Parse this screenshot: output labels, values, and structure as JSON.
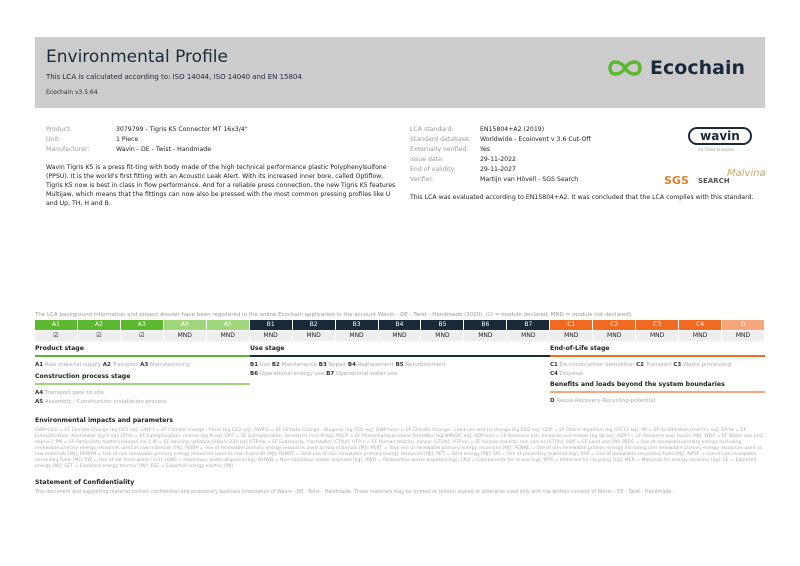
{
  "header": {
    "title": "Environmental Profile",
    "subtitle": "This LCA is calculated according to: ISO 14044, ISO 14040 and EN 15804",
    "version": "Ecochain v3.5.64",
    "logo_text": "Ecochain",
    "logo_color": "#5cb82e"
  },
  "product_info": [
    {
      "label": "Product:",
      "value": "3079799 - Tigris K5 Connector MT 16x3/4\""
    },
    {
      "label": "Unit:",
      "value": "1 Piece"
    },
    {
      "label": "Manufacturer:",
      "value": "Wavin - DE - Twist - Handmade"
    }
  ],
  "description": "Wavin Tigris K5 is a press fit-ting with body made of the high technical performance plastic Polyphenylsulfone (PPSU). It is the world's first fitting with an Acoustic Leak Alert. With its increased inner bore, called Optiflow, Tigris K5 now is best in class in flow performance. And for a reliable press connection, the new Tigris K5 features Multijaw, which means that the fittings can now also be pressed with the most common pressing profiles like U and Up, TH, H and B.",
  "lca_info": [
    {
      "label": "LCA standard:",
      "value": "EN15804+A2 (2019)"
    },
    {
      "label": "Standard database:",
      "value": "Worldwide - Ecoinvent v 3.6 Cut-Off"
    },
    {
      "label": "Externally verified:",
      "value": "Yes"
    },
    {
      "label": "Issue date:",
      "value": "29-11-2022"
    },
    {
      "label": "End of validity:",
      "value": "29-11-2027"
    },
    {
      "label": "Verifier:",
      "value": "Martijn van Hövell - SGS Search"
    }
  ],
  "conclusion": "This LCA was evaluated according to EN15804+A2. It was concluded that the LCA complies with this standard.",
  "logos": {
    "wavin": "wavin",
    "wavin_tagline": "An Orbia business",
    "sgs": "SGS",
    "search": "SEARCH",
    "signature": "Malvina"
  },
  "registration_note": "The LCA background information and project dossier have been registered in the online Ecochain application in the account Wavin - DE - Twist - Handmade (2020). (☑ = module declared, MND = module not declared).",
  "modules": [
    {
      "code": "A1",
      "status": "☑",
      "color": "#5cb82e"
    },
    {
      "code": "A2",
      "status": "☑",
      "color": "#5cb82e"
    },
    {
      "code": "A3",
      "status": "☑",
      "color": "#5cb82e"
    },
    {
      "code": "A4",
      "status": "MND",
      "color": "#9fd67a"
    },
    {
      "code": "A5",
      "status": "MND",
      "color": "#9fd67a"
    },
    {
      "code": "B1",
      "status": "MND",
      "color": "#1b2a3a"
    },
    {
      "code": "B2",
      "status": "MND",
      "color": "#1b2a3a"
    },
    {
      "code": "B3",
      "status": "MND",
      "color": "#1b2a3a"
    },
    {
      "code": "B4",
      "status": "MND",
      "color": "#1b2a3a"
    },
    {
      "code": "B5",
      "status": "MND",
      "color": "#1b2a3a"
    },
    {
      "code": "B6",
      "status": "MND",
      "color": "#1b2a3a"
    },
    {
      "code": "B7",
      "status": "MND",
      "color": "#1b2a3a"
    },
    {
      "code": "C1",
      "status": "MND",
      "color": "#f26a21"
    },
    {
      "code": "C2",
      "status": "MND",
      "color": "#f26a21"
    },
    {
      "code": "C3",
      "status": "MND",
      "color": "#f26a21"
    },
    {
      "code": "C4",
      "status": "MND",
      "color": "#f26a21"
    },
    {
      "code": "D",
      "status": "MND",
      "color": "#f7a57a"
    }
  ],
  "stages": {
    "product": {
      "title": "Product stage",
      "items": [
        [
          "A1",
          "Raw material supply"
        ],
        [
          "A2",
          "Transport"
        ],
        [
          "A3",
          "Manufacturing"
        ]
      ]
    },
    "construction": {
      "title": "Construction process stage",
      "items": [
        [
          "A4",
          "Transport gate to site"
        ],
        [
          "A5",
          "Assembly / Construction installation process"
        ]
      ]
    },
    "use": {
      "title": "Use stage",
      "items": [
        [
          "B1",
          "Use"
        ],
        [
          "B2",
          "Maintenance"
        ],
        [
          "B3",
          "Repair"
        ],
        [
          "B4",
          "Replacement"
        ],
        [
          "B5",
          "Refurbishment"
        ],
        [
          "B6",
          "Operational energy use"
        ],
        [
          "B7",
          "Operational water use"
        ]
      ]
    },
    "eol": {
      "title": "End-of-Life stage",
      "items": [
        [
          "C1",
          "De-construction demolition"
        ],
        [
          "C2",
          "Transport"
        ],
        [
          "C3",
          "Waste processing"
        ],
        [
          "C4",
          "Disposal"
        ]
      ]
    },
    "benefits": {
      "title": "Benefits and loads beyond the system boundaries",
      "items": [
        [
          "D",
          "Reuse-Recovery-Recycling-potential"
        ]
      ]
    }
  },
  "impacts": {
    "title": "Environmental impacts and parameters",
    "text": "GWP-total = EF Climate Change [kg CO2 eq]; GWP-f = EF Climate change - Fossil [kg CO2 eq]; GWP-b = EF Climate Change - Biogenic [kg CO2 eq]; GWP-luluc = EF Climate Change - Land use and LU change [kg CO2 eq]; ODP = EF Ozone depletion [kg CFC11 eq]; AP = EF Acidification [mol H+ eq]; EP-fw = EF Eutrophication, freshwater [kg P eq]; EP-m = EF Eutrophication, marine [kg N eq]; EP-T = EF Eutrophication, terrestrial [mol N eq]; POCP = EF Photochemical ozone formation [kg NMVOC eq]; ADP-mm = EF Resource use, minerals and metals [kg Sb eq]; ADP-f = EF Resource use, fossils [MJ]; WDP = EF Water use [m3 depriv.]; PM = EF Particulate matter [disease inc.]; IR = EF Ionising radiation [kBq U-235 eq]; ETP-fw = EF Ecotoxicity, freshwater [CTUe]; HTP-c = EF Human toxicity, cancer [CTUh]; HTP-nc = EF Human toxicity, non cancer [CTUh]; SQP = EF Land use [Pt]; PERE = Use of renewable primary energy excluding renewable primary energy resources used as raw materials [MJ]; PERM = Use of renewable primary energy resources used as raw materials [MJ]; PERT = Total use of renewable primary energy resources [MJ]; PENRE = Use of non renewable primary energy excluding non renewable primary energy resources used as raw materials [MJ]; PENRM = Use of non renewable primary energy resources used as raw materials [MJ]; PENRT = Total use of non renewable primary energy resources [MJ]; PET = Total energy [MJ]; SM = Use of secondary material [kg]; RSF = Use of renewable secondary fuels [MJ]; NRSF = Use of non-renewable secondary fuels [MJ]; FW = Use of net fresh water [m3]; HWD = Hazardous waste disposed [kg]; NHWD = Non-hazardous waste disposed [kg]; RWD = Radioactive waste disposed [kg]; CRU = Components for re-use [kg]; MFR = Materials for recycling [kg]; MER = Materials for energy recovery [kg]; EE = Exported energy [MJ]; EET = Exported energy thermic [MJ]; EEE = Exported energy electric [MJ]"
  },
  "confidentiality": {
    "title": "Statement of Confidentiality",
    "text": "This document and supporting material contain confidential and proprietary business information of Wavin - DE - Twist - Handmade. These materials may be printed or (photo) copied or otherwise used only with the written consent of Wavin - DE - Twist - Handmade."
  }
}
